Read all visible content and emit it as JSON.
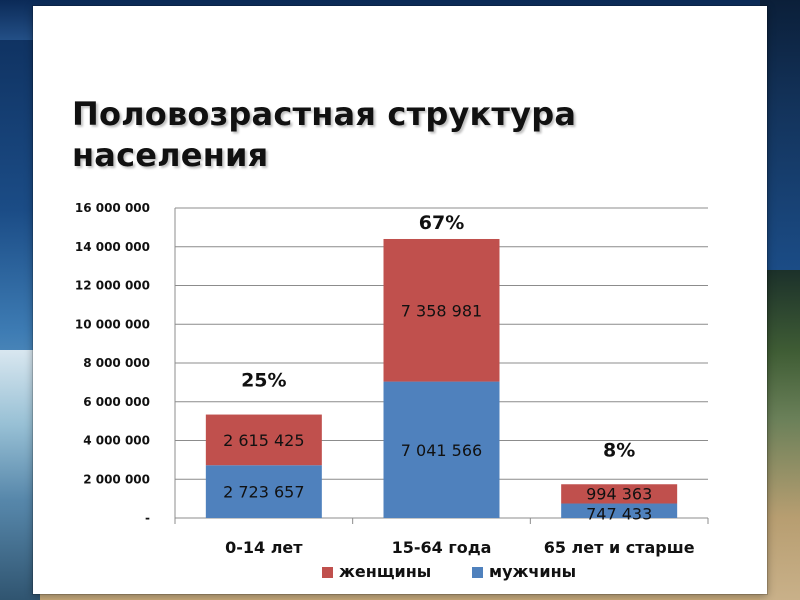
{
  "page": {
    "title": "Половозрастная структура населения"
  },
  "colors": {
    "women": "#c0504d",
    "men": "#4f81bd",
    "grid": "#8c8c8c"
  },
  "chart_data": {
    "type": "bar",
    "stacked": true,
    "categories": [
      "0-14 лет",
      "15-64 года",
      "65 лет и старше"
    ],
    "series": [
      {
        "name": "мужчины",
        "values": [
          2723657,
          7041566,
          747433
        ]
      },
      {
        "name": "женщины",
        "values": [
          2615425,
          7358981,
          994363
        ]
      }
    ],
    "data_labels": {
      "мужчины": [
        "2 723 657",
        "7 041 566",
        "747 433"
      ],
      "женщины": [
        "2 615 425",
        "7 358 981",
        "994 363"
      ]
    },
    "annotations": [
      "25%",
      "67%",
      "8%"
    ],
    "y_ticks": [
      {
        "value": 0,
        "label": "-"
      },
      {
        "value": 2000000,
        "label": "2 000 000"
      },
      {
        "value": 4000000,
        "label": "4 000 000"
      },
      {
        "value": 6000000,
        "label": "6 000 000"
      },
      {
        "value": 8000000,
        "label": "8 000 000"
      },
      {
        "value": 10000000,
        "label": "10 000 000"
      },
      {
        "value": 12000000,
        "label": "12 000 000"
      },
      {
        "value": 14000000,
        "label": "14 000 000"
      },
      {
        "value": 16000000,
        "label": "16 000 000"
      }
    ],
    "ylim": [
      0,
      16000000
    ],
    "grid": true,
    "legend": {
      "position": "bottom",
      "items": [
        "женщины",
        "мужчины"
      ]
    },
    "title": "",
    "xlabel": "",
    "ylabel": ""
  }
}
